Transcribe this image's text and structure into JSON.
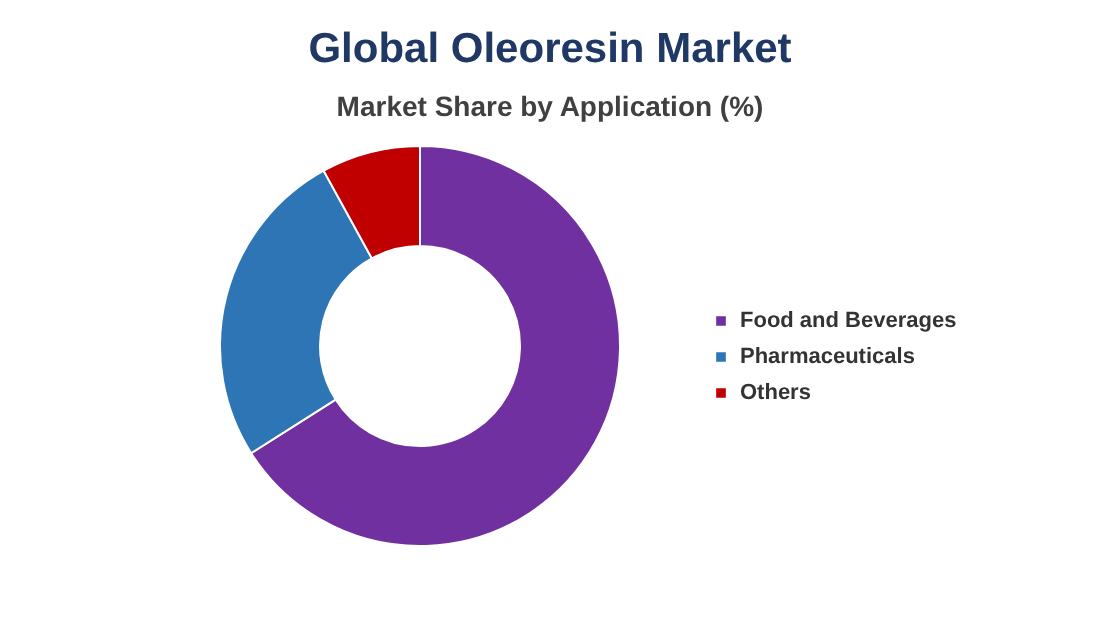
{
  "chart_data": {
    "type": "donut",
    "title": "Global Oleoresin Market",
    "subtitle": "Market Share by Application (%)",
    "categories": [
      "Food and Beverages",
      "Pharmaceuticals",
      "Others"
    ],
    "values": [
      66,
      26,
      8
    ],
    "colors": [
      "#7030a0",
      "#2e75b6",
      "#c00000"
    ],
    "legend": "right"
  }
}
